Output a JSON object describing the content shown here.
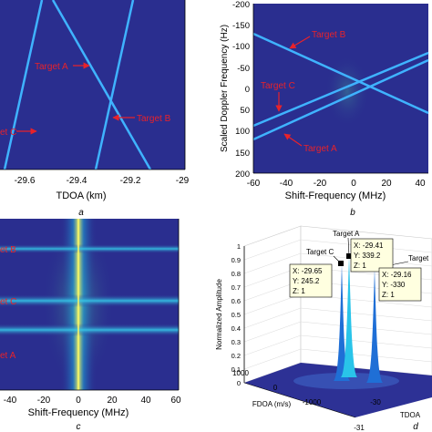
{
  "colors": {
    "background": "#2a2e8f",
    "line": "#3fb3ff",
    "annotation": "#e8222a",
    "axis": "#000000"
  },
  "panels": {
    "a": {
      "caption": "a",
      "xlabel": "TDOA (km)",
      "ticks": [
        "-29.6",
        "-29.4",
        "-29.2",
        "-29"
      ],
      "labels": {
        "target_a": "Target A",
        "target_b": "Target B",
        "target_c": "et C"
      }
    },
    "b": {
      "caption": "b",
      "xlabel": "Shift-Frequency (MHz)",
      "ylabel": "Scaled Doppler Frequency (Hz)",
      "xticks": [
        "-60",
        "-40",
        "-20",
        "0",
        "20",
        "40"
      ],
      "yticks": [
        "-200",
        "-150",
        "-100",
        "-50",
        "0",
        "50",
        "100",
        "150",
        "200"
      ],
      "labels": {
        "target_b": "Target B",
        "target_c": "Target C",
        "target_a": "Target A"
      }
    },
    "c": {
      "caption": "c",
      "xlabel": "Shift-Frequency (MHz)",
      "xticks": [
        "-40",
        "-20",
        "0",
        "20",
        "40",
        "60"
      ],
      "labels": {
        "target_b": "et B",
        "target_c": "et C",
        "target_a": "et A"
      }
    },
    "d": {
      "caption": "d",
      "zlabel": "Normalized Amplitude",
      "zticks": [
        "1",
        "0.9",
        "0.8",
        "0.7",
        "0.6",
        "0.5",
        "0.4",
        "0.3",
        "0.2",
        "0.1",
        "0"
      ],
      "fdoa_label": "FDOA (m/s)",
      "fdoa_ticks": [
        "1000",
        "0",
        "-1000"
      ],
      "tdoa_label": "TDOA",
      "tdoa_ticks": [
        "-30",
        "-31"
      ],
      "target_labels": {
        "a": "Target A",
        "b": "Target",
        "c": "Target C"
      },
      "datatips": {
        "a": [
          "X: -29.41",
          "Y: 339.2",
          "Z: 1"
        ],
        "c": [
          "X: -29.65",
          "Y: 245.2",
          "Z: 1"
        ],
        "b": [
          "X: -29.16",
          "Y: -330",
          "Z: 1"
        ]
      }
    }
  },
  "chart_data": [
    {
      "type": "line",
      "panel": "a",
      "xlabel": "TDOA (km)",
      "xlim": [
        -29.7,
        -29.0
      ],
      "series": [
        {
          "name": "Target A",
          "x": [
            -29.45,
            -29.18
          ],
          "y": [
            0,
            1
          ]
        },
        {
          "name": "Target B",
          "x": [
            -29.35,
            -29.24
          ],
          "y": [
            0,
            1
          ]
        },
        {
          "name": "Target C",
          "x": [
            -29.65,
            -29.48
          ],
          "y": [
            1,
            0
          ]
        }
      ]
    },
    {
      "type": "heatmap",
      "panel": "b",
      "xlabel": "Shift-Frequency (MHz)",
      "ylabel": "Scaled Doppler Frequency (Hz)",
      "xlim": [
        -60,
        50
      ],
      "ylim": [
        200,
        -200
      ],
      "series": [
        {
          "name": "Target B",
          "x": [
            -60,
            50
          ],
          "y": [
            -130,
            70
          ]
        },
        {
          "name": "Target C",
          "x": [
            -60,
            50
          ],
          "y": [
            85,
            -100
          ]
        },
        {
          "name": "Target A",
          "x": [
            -60,
            50
          ],
          "y": [
            125,
            -80
          ]
        }
      ]
    },
    {
      "type": "heatmap",
      "panel": "c",
      "xlabel": "Shift-Frequency (MHz)",
      "xlim": [
        -50,
        60
      ],
      "series": [
        {
          "name": "Target B"
        },
        {
          "name": "Target C"
        },
        {
          "name": "Target A"
        }
      ]
    },
    {
      "type": "scatter",
      "panel": "d",
      "zlabel": "Normalized Amplitude",
      "zlim": [
        0,
        1
      ],
      "points": [
        {
          "name": "Target A",
          "x": -29.41,
          "y": 339.2,
          "z": 1
        },
        {
          "name": "Target C",
          "x": -29.65,
          "y": 245.2,
          "z": 1
        },
        {
          "name": "Target B",
          "x": -29.16,
          "y": -330,
          "z": 1
        }
      ]
    }
  ]
}
